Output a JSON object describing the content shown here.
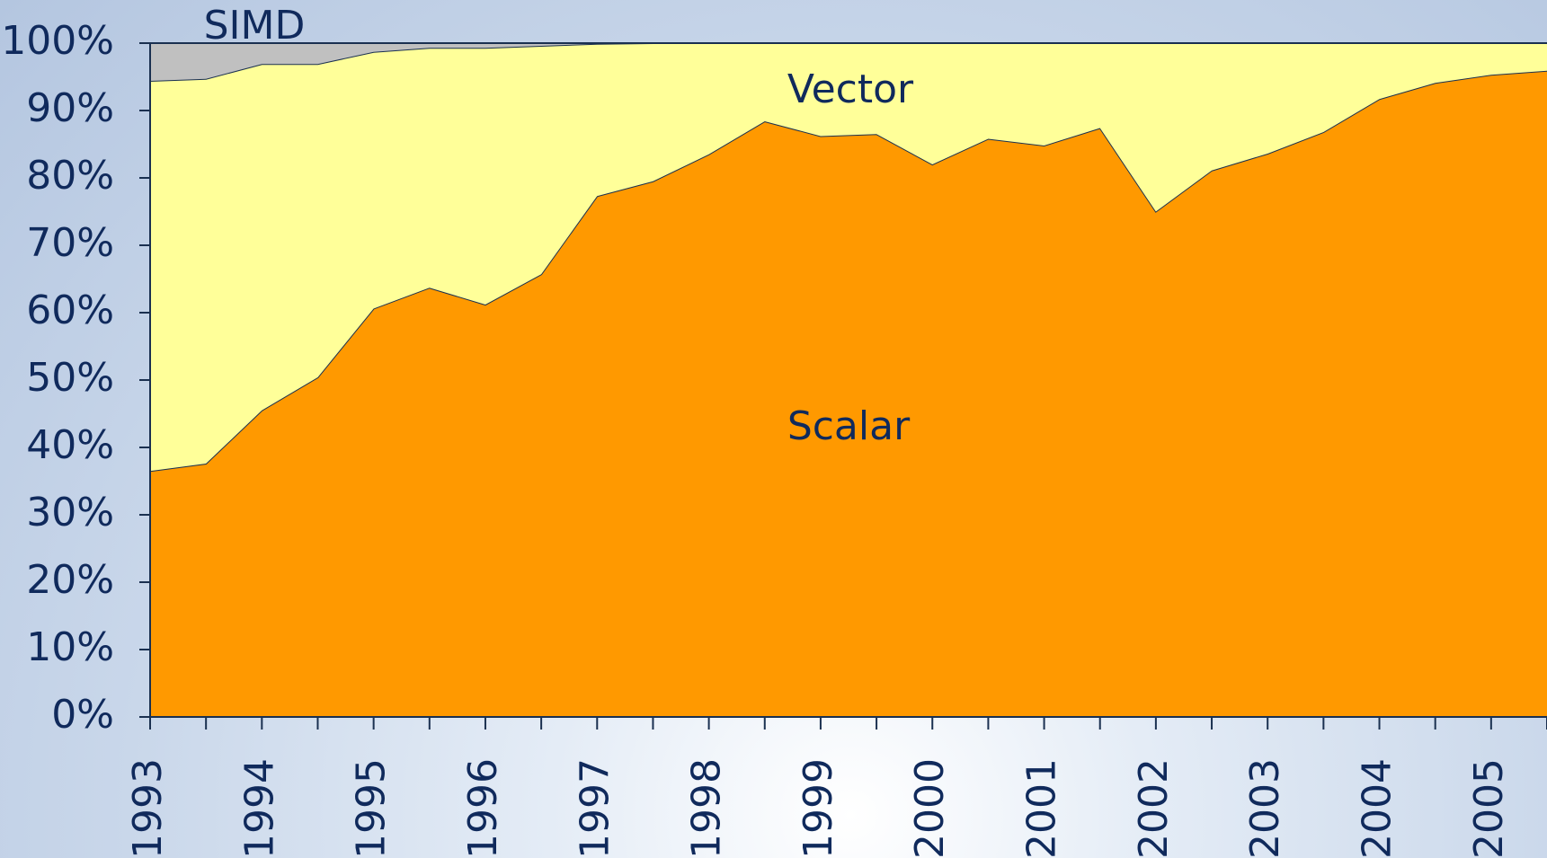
{
  "chart_data": {
    "type": "stacked_area",
    "x": [
      1993,
      1993.5,
      1994,
      1994.5,
      1995,
      1995.5,
      1996,
      1996.5,
      1997,
      1997.5,
      1998,
      1998.5,
      1999,
      1999.5,
      2000,
      2000.5,
      2001,
      2001.5,
      2002,
      2002.5,
      2003,
      2003.5,
      2004,
      2004.5,
      2005,
      2005.5
    ],
    "series": [
      {
        "name": "Scalar",
        "color": "#ff9900",
        "values": [
          36.5,
          37.6,
          45.5,
          50.4,
          60.6,
          63.7,
          61.2,
          65.7,
          77.3,
          79.5,
          83.5,
          88.4,
          86.2,
          86.5,
          82.0,
          85.8,
          84.8,
          87.4,
          75.0,
          81.1,
          83.6,
          86.8,
          91.7,
          94.1,
          95.3,
          95.9
        ]
      },
      {
        "name": "Vector",
        "color": "#ffff99",
        "values": [
          57.9,
          57.1,
          51.4,
          46.5,
          38.1,
          35.6,
          38.1,
          33.9,
          22.6,
          20.5,
          16.5,
          11.6,
          13.8,
          13.5,
          18.0,
          14.2,
          15.2,
          12.6,
          25.0,
          18.9,
          16.4,
          13.2,
          8.3,
          5.9,
          4.7,
          4.1
        ]
      },
      {
        "name": "SIMD",
        "color": "#c0c0c0",
        "values": [
          5.6,
          5.3,
          3.1,
          3.1,
          1.3,
          0.7,
          0.7,
          0.4,
          0.1,
          0,
          0,
          0,
          0,
          0,
          0,
          0,
          0,
          0,
          0,
          0,
          0,
          0,
          0,
          0,
          0,
          0
        ]
      }
    ],
    "xlim": [
      1993,
      2005.5
    ],
    "xticks": [
      1993,
      1994,
      1995,
      1996,
      1997,
      1998,
      1999,
      2000,
      2001,
      2002,
      2003,
      2004,
      2005
    ],
    "ylim": [
      0,
      100
    ],
    "yticks": [
      {
        "value": 0,
        "label": "0%"
      },
      {
        "value": 10,
        "label": "10%"
      },
      {
        "value": 20,
        "label": "20%"
      },
      {
        "value": 30,
        "label": "30%"
      },
      {
        "value": 40,
        "label": "40%"
      },
      {
        "value": 50,
        "label": "50%"
      },
      {
        "value": 60,
        "label": "60%"
      },
      {
        "value": 70,
        "label": "70%"
      },
      {
        "value": 80,
        "label": "80%"
      },
      {
        "value": 90,
        "label": "90%"
      },
      {
        "value": 100,
        "label": "100%"
      }
    ]
  }
}
